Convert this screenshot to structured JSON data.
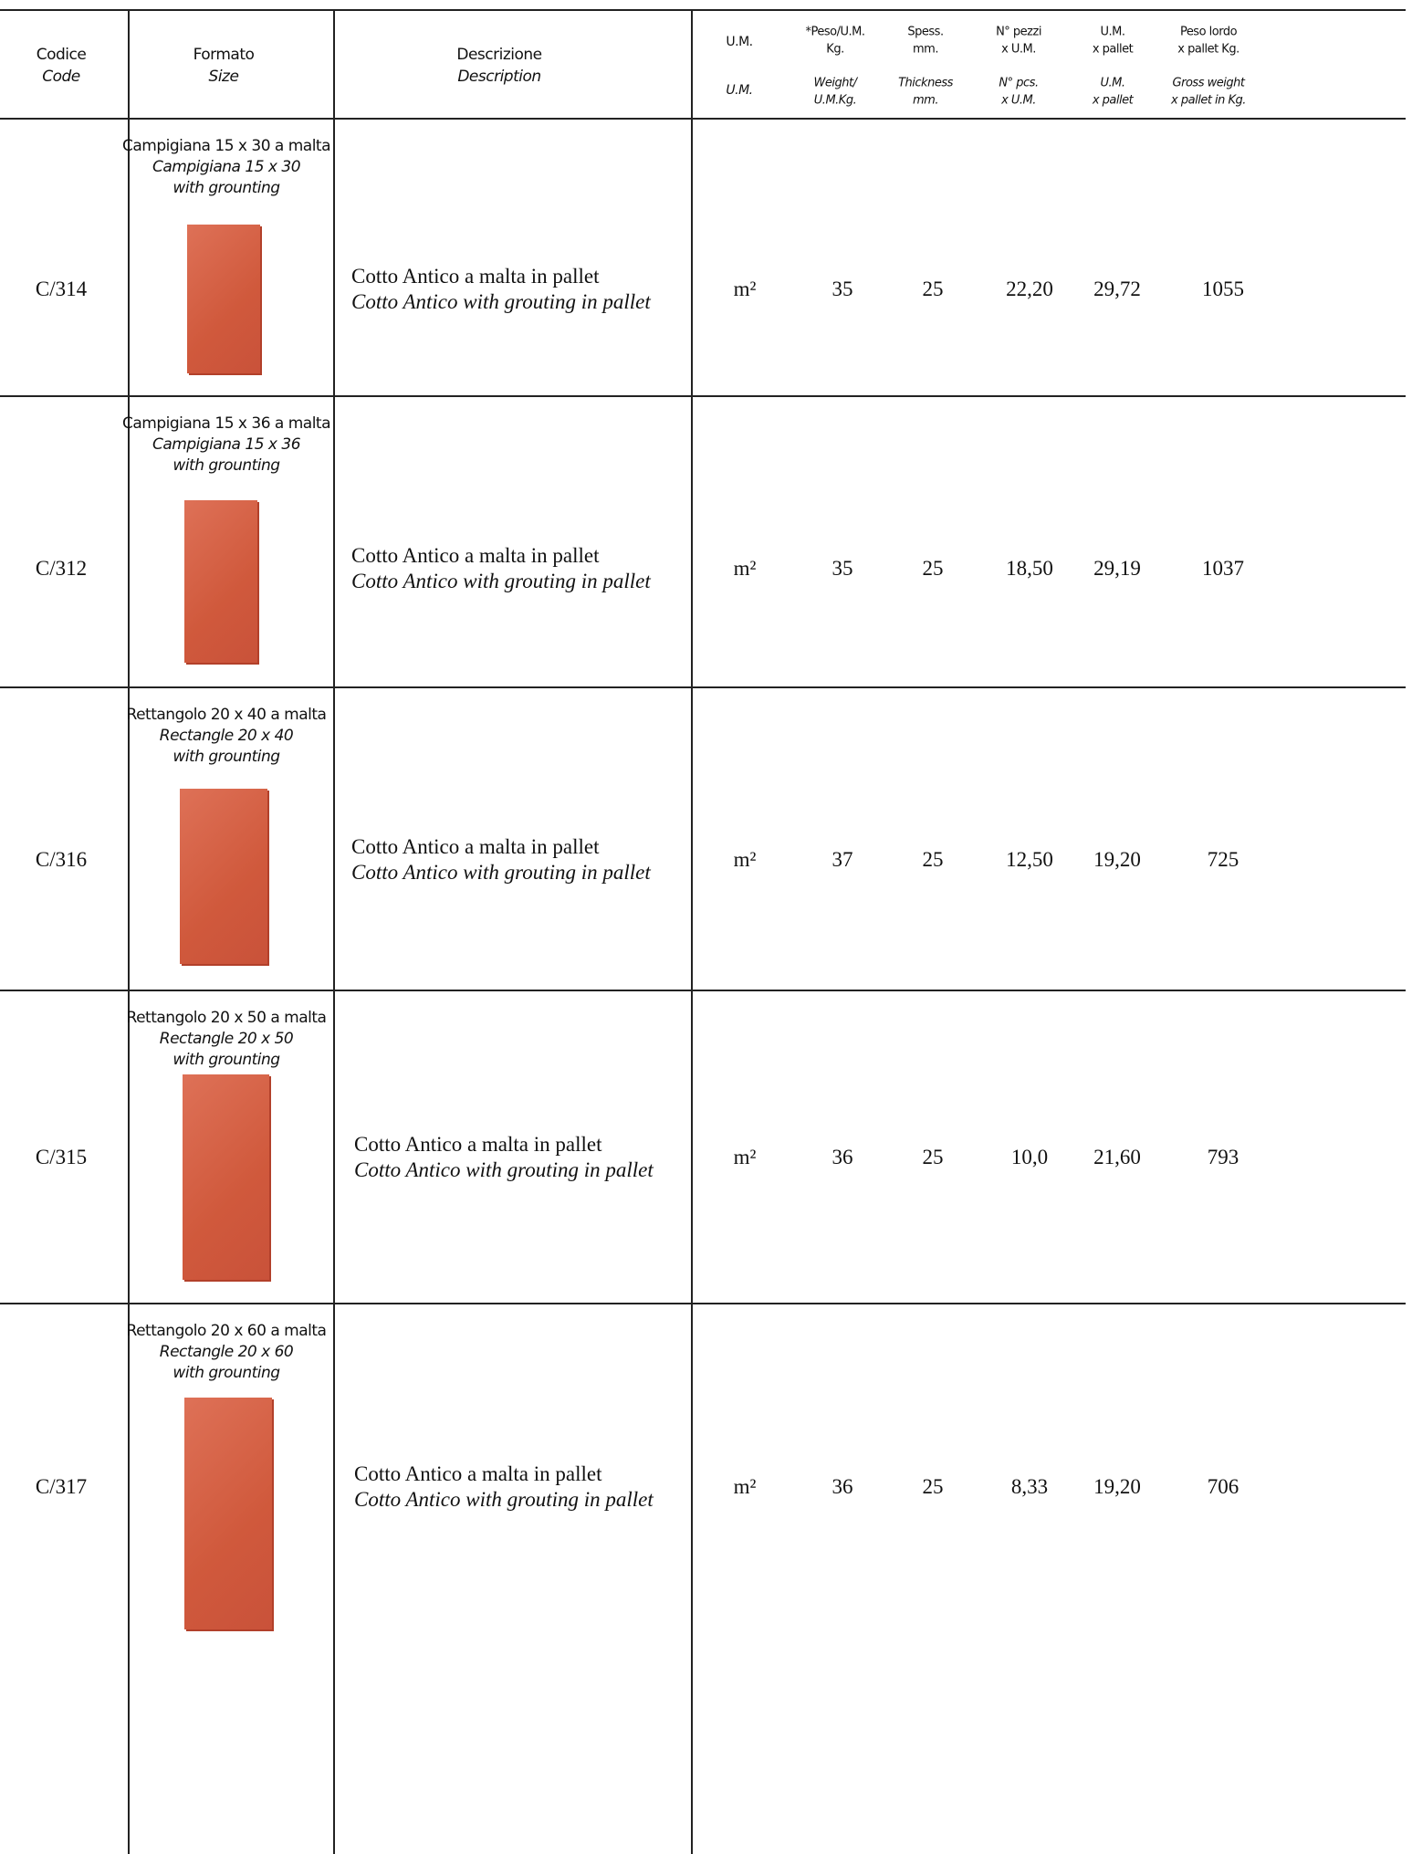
{
  "header": {
    "columns": [
      {
        "it": [
          "Codice"
        ],
        "en": [
          "Code"
        ]
      },
      {
        "it": [
          "Formato"
        ],
        "en": [
          "Size"
        ]
      },
      {
        "it": [
          "Descrizione"
        ],
        "en": [
          "Description"
        ]
      },
      {
        "it": [
          "U.M."
        ],
        "en": [
          "U.M."
        ]
      },
      {
        "it": [
          "*Peso/U.M.",
          "Kg."
        ],
        "en": [
          "Weight/",
          "U.M.Kg."
        ]
      },
      {
        "it": [
          "Spess.",
          "mm."
        ],
        "en": [
          "Thickness",
          "mm."
        ]
      },
      {
        "it": [
          "N° pezzi",
          "x U.M."
        ],
        "en": [
          "N° pcs.",
          "x U.M."
        ]
      },
      {
        "it": [
          "U.M.",
          "x pallet"
        ],
        "en": [
          "U.M.",
          "x pallet"
        ]
      },
      {
        "it": [
          "Peso lordo",
          "x pallet Kg."
        ],
        "en": [
          "Gross weight",
          "x pallet in Kg."
        ]
      }
    ]
  },
  "rows": [
    {
      "code": "C/314",
      "format": [
        "Campigiana 15 x 30 a malta",
        "Campigiana 15 x 30",
        "with grounting"
      ],
      "description": [
        "Cotto Antico a malta in pallet",
        "Cotto Antico with grouting in pallet"
      ],
      "um": "m²",
      "weight": "35",
      "thickness": "25",
      "pieces": "22,20",
      "um_pallet": "29,72",
      "gross": "1055"
    },
    {
      "code": "C/312",
      "format": [
        "Campigiana 15 x 36 a malta",
        "Campigiana 15 x 36",
        "with grounting"
      ],
      "description": [
        "Cotto Antico a malta in pallet",
        "Cotto Antico with grouting in pallet"
      ],
      "um": "m²",
      "weight": "35",
      "thickness": "25",
      "pieces": "18,50",
      "um_pallet": "29,19",
      "gross": "1037"
    },
    {
      "code": "C/316",
      "format": [
        "Rettangolo 20 x 40 a malta",
        "Rectangle 20 x 40",
        "with grounting"
      ],
      "description": [
        "Cotto Antico a malta in pallet",
        "Cotto Antico with grouting in pallet"
      ],
      "um": "m²",
      "weight": "37",
      "thickness": "25",
      "pieces": "12,50",
      "um_pallet": "19,20",
      "gross": "725"
    },
    {
      "code": "C/315",
      "format": [
        "Rettangolo 20 x 50 a malta",
        "Rectangle 20 x 50",
        "with grounting"
      ],
      "description": [
        "Cotto Antico a malta in pallet",
        "Cotto Antico with grouting in pallet"
      ],
      "um": "m²",
      "weight": "36",
      "thickness": "25",
      "pieces": "10,0",
      "um_pallet": "21,60",
      "gross": "793"
    },
    {
      "code": "C/317",
      "format": [
        "Rettangolo 20 x 60 a malta",
        "Rectangle 20 x 60",
        "with grounting"
      ],
      "description": [
        "Cotto Antico a malta in pallet",
        "Cotto Antico with grouting in pallet"
      ],
      "um": "m²",
      "weight": "36",
      "thickness": "25",
      "pieces": "8,33",
      "um_pallet": "19,20",
      "gross": "706"
    }
  ]
}
